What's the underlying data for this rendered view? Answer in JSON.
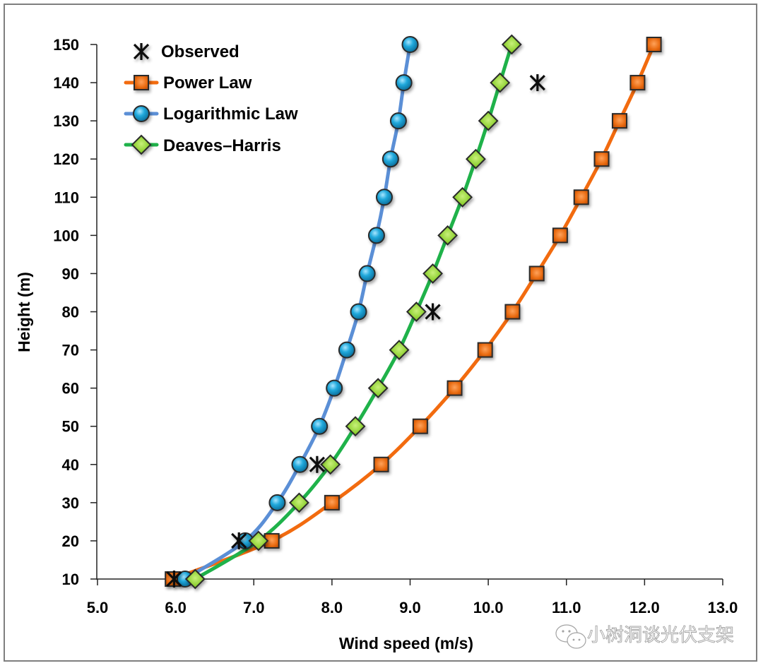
{
  "chart_data": {
    "type": "line",
    "title": "",
    "xlabel": "Wind speed (m/s)",
    "ylabel": "Height (m)",
    "xlim": [
      5.0,
      13.0
    ],
    "ylim": [
      10,
      150
    ],
    "xticks": [
      "5.0",
      "6.0",
      "7.0",
      "8.0",
      "9.0",
      "10.0",
      "11.0",
      "12.0",
      "13.0"
    ],
    "yticks": [
      "10",
      "20",
      "30",
      "40",
      "50",
      "60",
      "70",
      "80",
      "90",
      "100",
      "110",
      "120",
      "130",
      "140",
      "150"
    ],
    "grid": false,
    "legend_position": "top-left",
    "series": [
      {
        "name": "Observed",
        "marker": "asterisk",
        "line": false,
        "color": "#111111",
        "points": [
          {
            "x": 5.98,
            "y": 10
          },
          {
            "x": 6.81,
            "y": 20
          },
          {
            "x": 7.81,
            "y": 40
          },
          {
            "x": 9.29,
            "y": 80
          },
          {
            "x": 10.63,
            "y": 140
          }
        ]
      },
      {
        "name": "Power Law",
        "marker": "square",
        "line": true,
        "color": "#f26b0f",
        "points": [
          {
            "x": 5.96,
            "y": 10
          },
          {
            "x": 7.23,
            "y": 20
          },
          {
            "x": 8.0,
            "y": 30
          },
          {
            "x": 8.63,
            "y": 40
          },
          {
            "x": 9.13,
            "y": 50
          },
          {
            "x": 9.57,
            "y": 60
          },
          {
            "x": 9.96,
            "y": 70
          },
          {
            "x": 10.31,
            "y": 80
          },
          {
            "x": 10.62,
            "y": 90
          },
          {
            "x": 10.92,
            "y": 100
          },
          {
            "x": 11.19,
            "y": 110
          },
          {
            "x": 11.45,
            "y": 120
          },
          {
            "x": 11.68,
            "y": 130
          },
          {
            "x": 11.91,
            "y": 140
          },
          {
            "x": 12.12,
            "y": 150
          }
        ]
      },
      {
        "name": "Logarithmic Law",
        "marker": "circle",
        "line": true,
        "color": "#5b8fd6",
        "points": [
          {
            "x": 6.12,
            "y": 10
          },
          {
            "x": 6.89,
            "y": 20
          },
          {
            "x": 7.3,
            "y": 30
          },
          {
            "x": 7.59,
            "y": 40
          },
          {
            "x": 7.84,
            "y": 50
          },
          {
            "x": 8.03,
            "y": 60
          },
          {
            "x": 8.19,
            "y": 70
          },
          {
            "x": 8.34,
            "y": 80
          },
          {
            "x": 8.45,
            "y": 90
          },
          {
            "x": 8.57,
            "y": 100
          },
          {
            "x": 8.67,
            "y": 110
          },
          {
            "x": 8.75,
            "y": 120
          },
          {
            "x": 8.85,
            "y": 130
          },
          {
            "x": 8.92,
            "y": 140
          },
          {
            "x": 9.0,
            "y": 150
          }
        ]
      },
      {
        "name": "Deaves–Harris",
        "marker": "diamond",
        "line": true,
        "color": "#1fb24a",
        "points": [
          {
            "x": 6.25,
            "y": 10
          },
          {
            "x": 7.06,
            "y": 20
          },
          {
            "x": 7.58,
            "y": 30
          },
          {
            "x": 7.98,
            "y": 40
          },
          {
            "x": 8.3,
            "y": 50
          },
          {
            "x": 8.59,
            "y": 60
          },
          {
            "x": 8.86,
            "y": 70
          },
          {
            "x": 9.08,
            "y": 80
          },
          {
            "x": 9.29,
            "y": 90
          },
          {
            "x": 9.48,
            "y": 100
          },
          {
            "x": 9.67,
            "y": 110
          },
          {
            "x": 9.84,
            "y": 120
          },
          {
            "x": 10.0,
            "y": 130
          },
          {
            "x": 10.15,
            "y": 140
          },
          {
            "x": 10.3,
            "y": 150
          }
        ]
      }
    ]
  },
  "marker_colors": {
    "square_fill": "#e8690f",
    "circle_fill": "#21a9dc",
    "diamond_fill": "#8ccf2f",
    "marker_outline": "#2a2a2a"
  },
  "watermark": {
    "icon": "wechat-icon",
    "text": "小树洞谈光伏支架"
  }
}
